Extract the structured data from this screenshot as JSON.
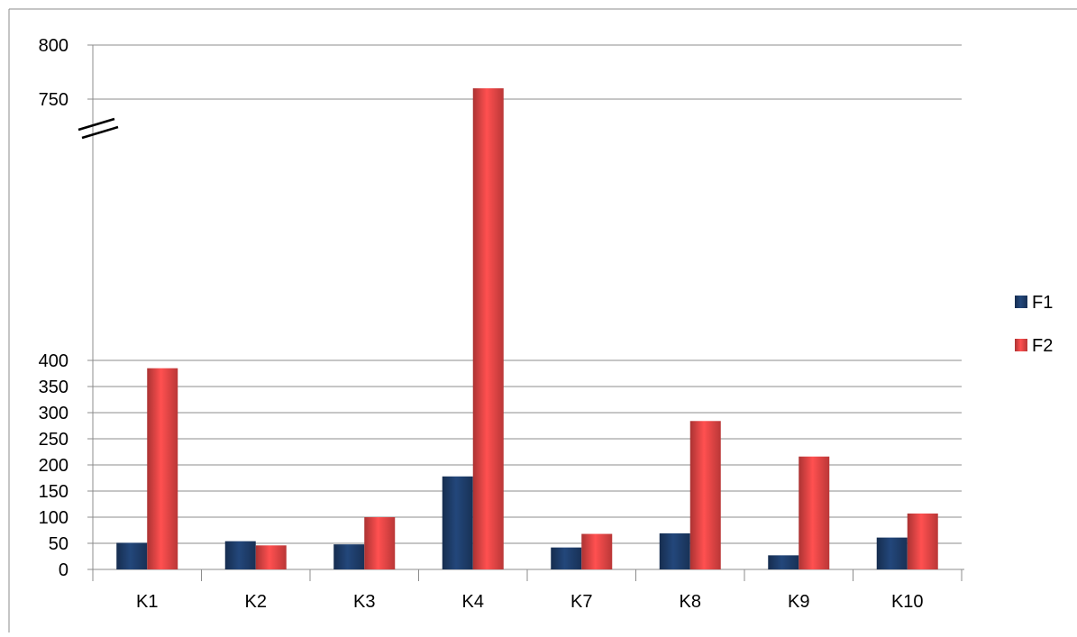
{
  "chart_data": {
    "type": "bar",
    "categories": [
      "K1",
      "K2",
      "K3",
      "K4",
      "K7",
      "K8",
      "K9",
      "K10"
    ],
    "series": [
      {
        "name": "F1",
        "color": "#1F3F6E",
        "values": [
          51,
          54,
          48,
          178,
          42,
          69,
          27,
          61
        ]
      },
      {
        "name": "F2",
        "color": "#EE4747",
        "values": [
          385,
          46,
          100,
          760,
          68,
          284,
          216,
          107
        ]
      }
    ],
    "y_axis": {
      "broken": true,
      "lower_range": [
        0,
        400
      ],
      "upper_range": [
        700,
        800
      ],
      "ticks": [
        0,
        50,
        100,
        150,
        200,
        250,
        300,
        350,
        400,
        750,
        800
      ],
      "tick_labels": [
        "0",
        "50",
        "100",
        "150",
        "200",
        "250",
        "300",
        "350",
        "400",
        "750",
        "800"
      ]
    },
    "title": "",
    "xlabel": "",
    "ylabel": "",
    "grid": true,
    "legend_position": "right"
  }
}
